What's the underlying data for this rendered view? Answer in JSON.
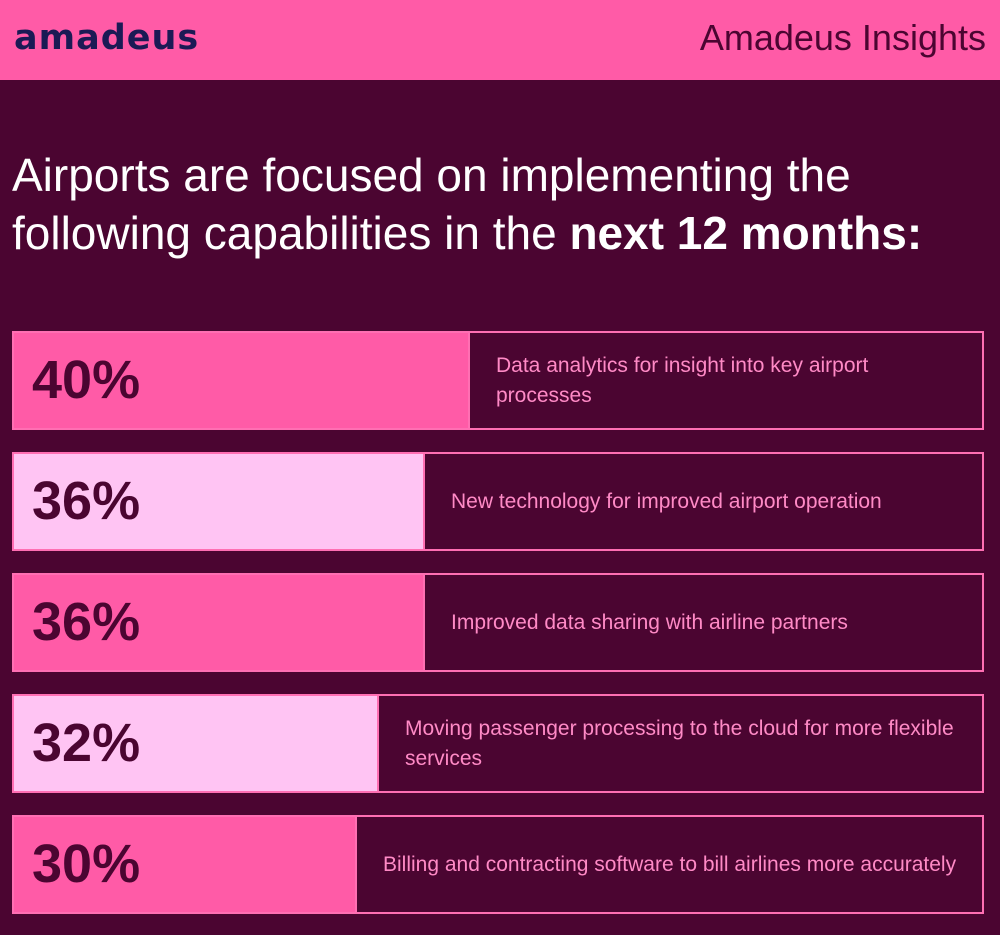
{
  "header": {
    "logo_text": "amadeus",
    "brand_title": "Amadeus Insights"
  },
  "headline": {
    "text_regular": "Airports are focused on implementing the following capabilities in the ",
    "text_bold": "next 12 months:"
  },
  "colors": {
    "background": "#4b0531",
    "header_bg": "#ff5ba7",
    "bar_pink": "#ff5ba7",
    "bar_light": "#ffc4f3",
    "border": "#ff6fb3",
    "label_text": "#ff8ac6"
  },
  "chart_data": {
    "type": "bar",
    "orientation": "horizontal",
    "categories": [
      "Data analytics for insight into key airport processes",
      "New technology for improved airport operation",
      "Improved data sharing with airline partners",
      "Moving passenger processing to the cloud for more flexible services",
      "Billing and contracting software to bill airlines more accurately"
    ],
    "values": [
      40,
      36,
      36,
      32,
      30
    ],
    "value_labels": [
      "40%",
      "36%",
      "36%",
      "32%",
      "30%"
    ],
    "bar_colors": [
      "#ff5ba7",
      "#ffc4f3",
      "#ff5ba7",
      "#ffc4f3",
      "#ff5ba7"
    ],
    "title": "",
    "xlabel": "",
    "ylabel": "",
    "unit": "%",
    "grid": false
  }
}
